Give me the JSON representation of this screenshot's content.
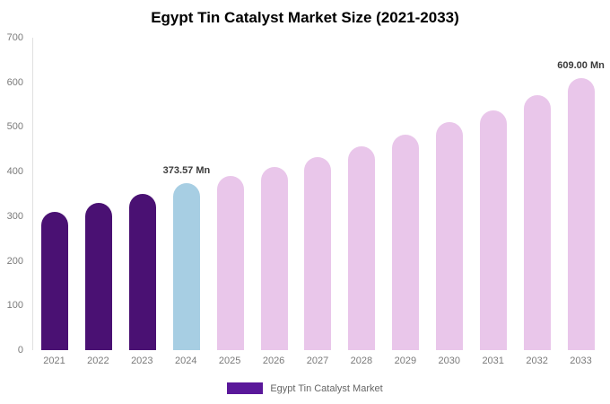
{
  "title": "Egypt Tin Catalyst Market Size (2021-2033)",
  "legend": {
    "label": "Egypt Tin Catalyst Market",
    "color": "#5a189a"
  },
  "chart_data": {
    "type": "bar",
    "title": "Egypt Tin Catalyst Market Size (2021-2033)",
    "xlabel": "",
    "ylabel": "",
    "ylim": [
      0,
      700
    ],
    "yticks": [
      0,
      100,
      200,
      300,
      400,
      500,
      600,
      700
    ],
    "grid": false,
    "legend_position": "bottom",
    "categories": [
      "2021",
      "2022",
      "2023",
      "2024",
      "2025",
      "2026",
      "2027",
      "2028",
      "2029",
      "2030",
      "2031",
      "2032",
      "2033"
    ],
    "values": [
      310,
      330,
      350,
      373.57,
      390,
      410,
      433,
      457,
      483,
      510,
      538,
      571,
      609
    ],
    "bar_colors": [
      "#4a1173",
      "#4a1173",
      "#4a1173",
      "#a7cee3",
      "#e9c6ea",
      "#e9c6ea",
      "#e9c6ea",
      "#e9c6ea",
      "#e9c6ea",
      "#e9c6ea",
      "#e9c6ea",
      "#e9c6ea",
      "#e9c6ea"
    ],
    "annotations": [
      {
        "category": "2024",
        "text": "373.57 Mn"
      },
      {
        "category": "2033",
        "text": "609.00 Mn"
      }
    ]
  }
}
